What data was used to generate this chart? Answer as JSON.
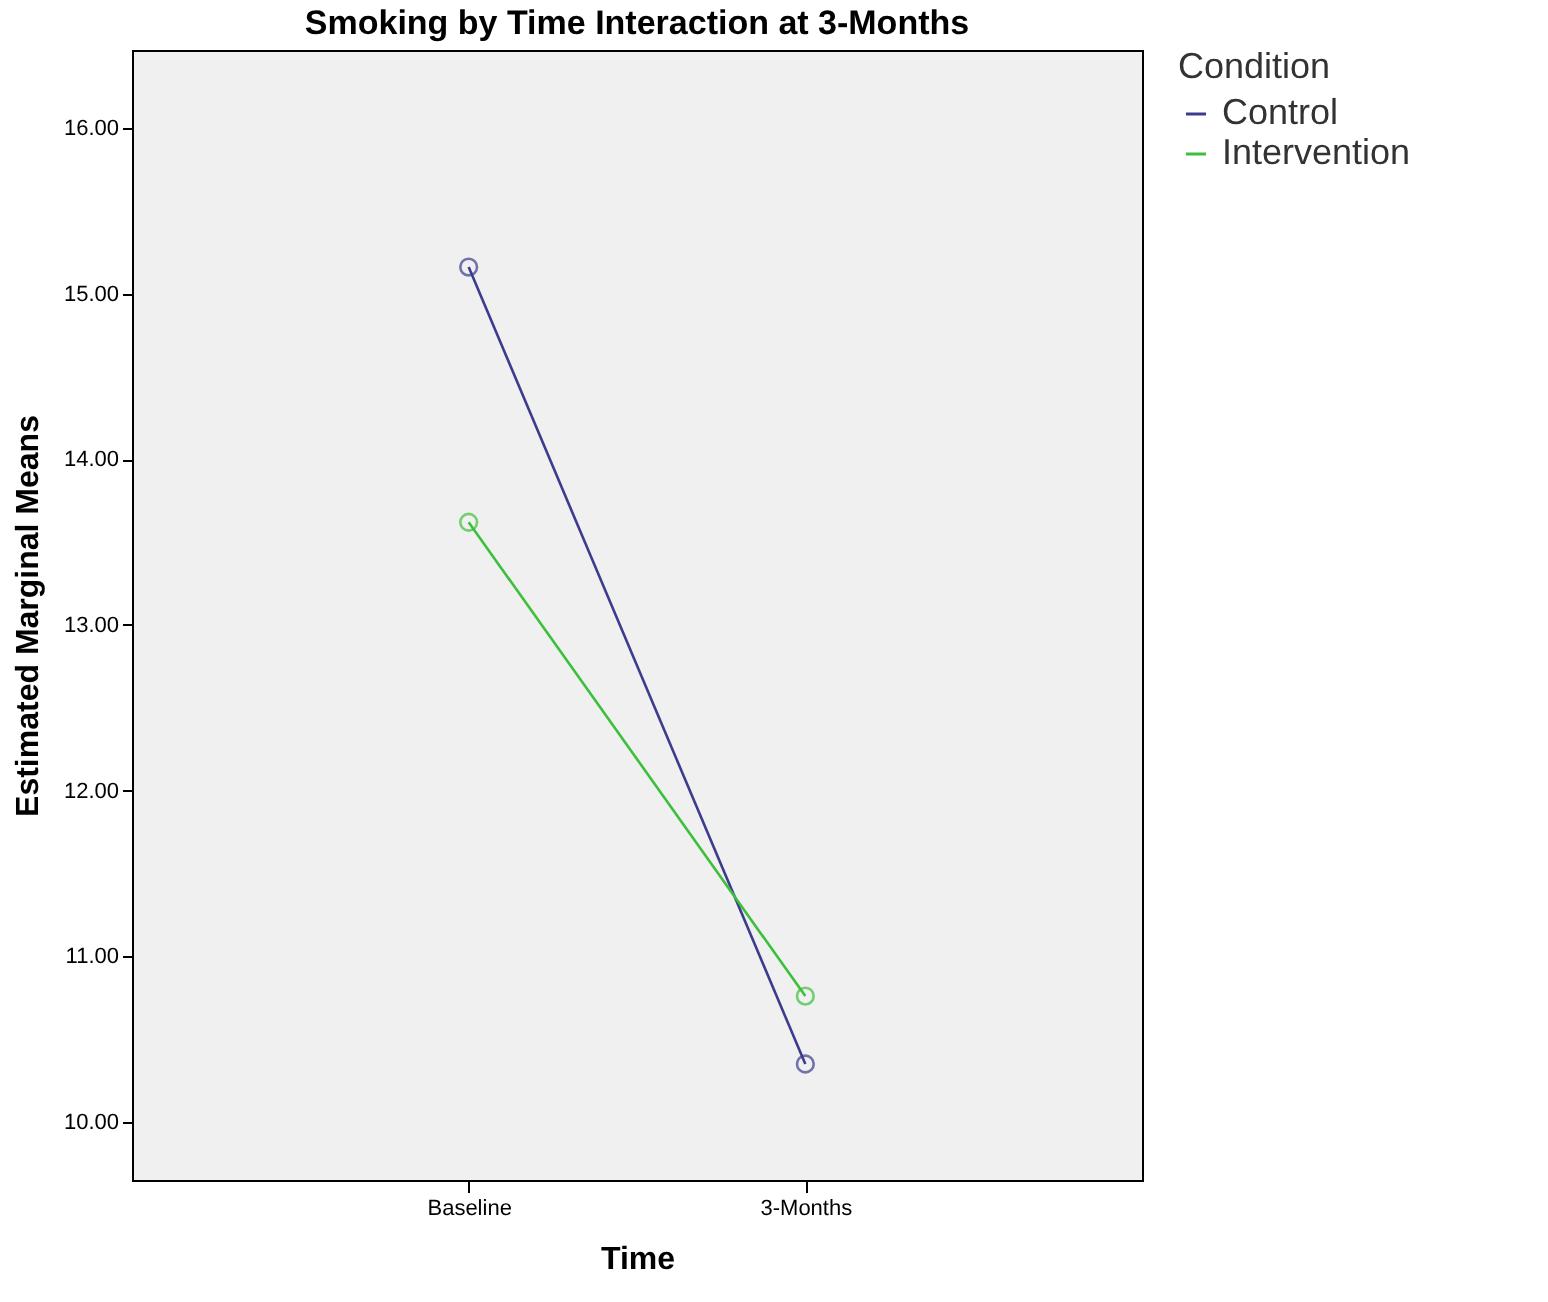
{
  "chart_data": {
    "type": "line",
    "title": "Smoking by Time Interaction at 3-Months",
    "xlabel": "Time",
    "ylabel": "Estimated Marginal Means",
    "legend_title": "Condition",
    "legend": "right",
    "marker": "circle",
    "grid": false,
    "categories": [
      "Baseline",
      "3-Months"
    ],
    "series": [
      {
        "name": "Control",
        "color": "#3c3c8e",
        "values": [
          15.16,
          10.35
        ]
      },
      {
        "name": "Intervention",
        "color": "#3cc03c",
        "values": [
          13.62,
          10.76
        ]
      }
    ],
    "ylim": [
      9.65,
      16.47
    ],
    "yticks": [
      {
        "value": 10,
        "label": "10.00"
      },
      {
        "value": 11,
        "label": "11.00"
      },
      {
        "value": 12,
        "label": "12.00"
      },
      {
        "value": 13,
        "label": "13.00"
      },
      {
        "value": 14,
        "label": "14.00"
      },
      {
        "value": 15,
        "label": "15.00"
      },
      {
        "value": 16,
        "label": "16.00"
      }
    ]
  }
}
